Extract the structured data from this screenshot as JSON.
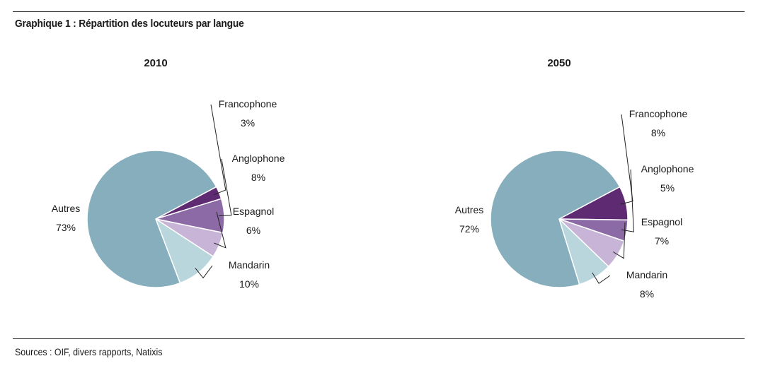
{
  "figure": {
    "title": "Graphique 1 : Répartition des locuteurs par langue",
    "sources": "Sources : OIF, divers rapports, Natixis"
  },
  "chart_data": [
    {
      "type": "pie",
      "title": "2010",
      "categories": [
        "Francophone",
        "Anglophone",
        "Espagnol",
        "Mandarin",
        "Autres"
      ],
      "values": [
        3,
        8,
        6,
        10,
        73
      ],
      "value_labels": [
        "3%",
        "8%",
        "6%",
        "10%",
        "73%"
      ],
      "colors": [
        "#5e2a72",
        "#8c6aa6",
        "#c8b4d6",
        "#b9d6dc",
        "#86aebc"
      ]
    },
    {
      "type": "pie",
      "title": "2050",
      "categories": [
        "Francophone",
        "Anglophone",
        "Espagnol",
        "Mandarin",
        "Autres"
      ],
      "values": [
        8,
        5,
        7,
        8,
        72
      ],
      "value_labels": [
        "8%",
        "5%",
        "7%",
        "8%",
        "72%"
      ],
      "colors": [
        "#5e2a72",
        "#8c6aa6",
        "#c8b4d6",
        "#b9d6dc",
        "#86aebc"
      ]
    }
  ]
}
